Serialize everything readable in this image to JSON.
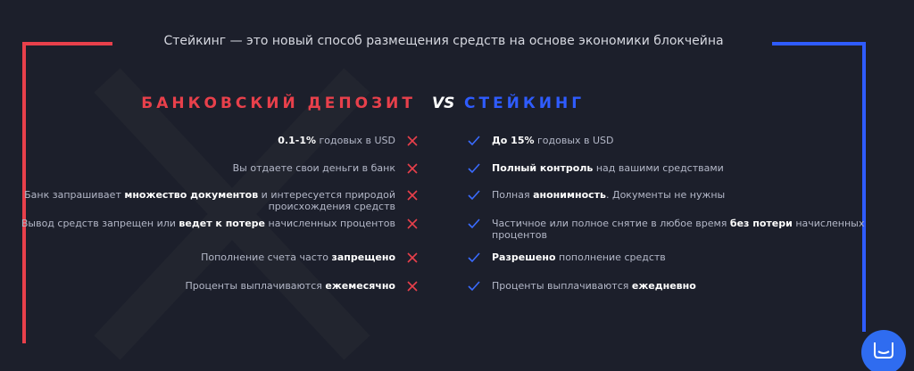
{
  "title": "Стейкинг — это новый способ размещения средств на основе экономики блокчейна",
  "left_heading": "БАНКОВСКИЙ ДЕПОЗИТ",
  "vs": "VS",
  "right_heading": "СТЕЙКИНГ",
  "rows": [
    {
      "left": {
        "lines": [
          [
            {
              "text": "0.1-1%",
              "bold": true
            },
            {
              "text": " годовых в USD",
              "bold": false
            }
          ]
        ]
      },
      "right": {
        "lines": [
          [
            {
              "text": "До 15%",
              "bold": true
            },
            {
              "text": " годовых в USD",
              "bold": false
            }
          ]
        ]
      }
    },
    {
      "left": {
        "lines": [
          [
            {
              "text": "Вы отдаете свои деньги в банк",
              "bold": false
            }
          ]
        ]
      },
      "right": {
        "lines": [
          [
            {
              "text": "Полный контроль",
              "bold": true
            },
            {
              "text": " над вашими средствами",
              "bold": false
            }
          ]
        ]
      }
    },
    {
      "left": {
        "lines": [
          [
            {
              "text": "Банк запрашивает ",
              "bold": false
            },
            {
              "text": "множество документов",
              "bold": true
            },
            {
              "text": " и интересуется природой",
              "bold": false
            }
          ],
          [
            {
              "text": "происхождения средств",
              "bold": false
            }
          ]
        ]
      },
      "right": {
        "lines": [
          [
            {
              "text": "Полная ",
              "bold": false
            },
            {
              "text": "анонимность",
              "bold": true
            },
            {
              "text": ". Документы не нужны",
              "bold": false
            }
          ]
        ]
      }
    },
    {
      "left": {
        "lines": [
          [
            {
              "text": "Вывод средств запрещен или ",
              "bold": false
            },
            {
              "text": "ведет к потере",
              "bold": true
            },
            {
              "text": " начисленных процентов",
              "bold": false
            }
          ]
        ]
      },
      "right": {
        "lines": [
          [
            {
              "text": "Частичное или полное снятие в любое время ",
              "bold": false
            },
            {
              "text": "без потери",
              "bold": true
            },
            {
              "text": " начисленных",
              "bold": false
            }
          ],
          [
            {
              "text": "процентов",
              "bold": false
            }
          ]
        ]
      }
    },
    {
      "left": {
        "lines": [
          [
            {
              "text": "Пополнение счета часто ",
              "bold": false
            },
            {
              "text": "запрещено",
              "bold": true
            }
          ]
        ]
      },
      "right": {
        "lines": [
          [
            {
              "text": "Разрешено",
              "bold": true
            },
            {
              "text": " пополнение средств",
              "bold": false
            }
          ]
        ]
      }
    },
    {
      "left": {
        "lines": [
          [
            {
              "text": "Проценты выплачиваются ",
              "bold": false
            },
            {
              "text": "ежемесячно",
              "bold": true
            }
          ]
        ]
      },
      "right": {
        "lines": [
          [
            {
              "text": "Проценты выплачиваются ",
              "bold": false
            },
            {
              "text": "ежедневно",
              "bold": true
            }
          ]
        ]
      }
    }
  ]
}
